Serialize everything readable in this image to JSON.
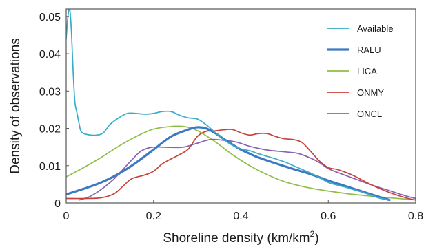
{
  "chart_data": {
    "type": "line",
    "title": "",
    "xlabel": "Shoreline density (km/km",
    "xlabel_sup": "2",
    "xlabel_end": ")",
    "ylabel": "Density of observations",
    "xlim": [
      0,
      0.8
    ],
    "ylim": [
      0,
      0.052
    ],
    "xticks": [
      0,
      0.2,
      0.4,
      0.6,
      0.8
    ],
    "xtick_labels": [
      "0",
      "0.2",
      "0.4",
      "0.6",
      "0.8"
    ],
    "yticks": [
      0,
      0.01,
      0.02,
      0.03,
      0.04,
      0.05
    ],
    "ytick_labels": [
      "0",
      "0.01",
      "0.02",
      "0.03",
      "0.04",
      "0.05"
    ],
    "grid": false,
    "legend": "top-right",
    "series": [
      {
        "name": "Available",
        "color": "#3aacc9",
        "width": 1.7,
        "x": [
          0,
          0.004,
          0.008,
          0.012,
          0.016,
          0.02,
          0.025,
          0.03,
          0.035,
          0.05,
          0.07,
          0.085,
          0.1,
          0.12,
          0.14,
          0.16,
          0.18,
          0.2,
          0.22,
          0.24,
          0.26,
          0.28,
          0.3,
          0.32,
          0.34,
          0.36,
          0.38,
          0.4,
          0.42,
          0.44,
          0.46,
          0.48,
          0.5,
          0.52,
          0.54,
          0.56,
          0.58,
          0.6,
          0.62,
          0.64,
          0.66,
          0.68,
          0.7,
          0.72,
          0.74
        ],
        "y": [
          0.044,
          0.05,
          0.052,
          0.046,
          0.035,
          0.027,
          0.024,
          0.021,
          0.019,
          0.0183,
          0.0182,
          0.0188,
          0.021,
          0.0228,
          0.024,
          0.024,
          0.0238,
          0.024,
          0.0245,
          0.0245,
          0.0235,
          0.0228,
          0.0225,
          0.021,
          0.019,
          0.017,
          0.0155,
          0.0145,
          0.014,
          0.0132,
          0.0125,
          0.0118,
          0.011,
          0.01,
          0.009,
          0.008,
          0.0068,
          0.0055,
          0.0048,
          0.0042,
          0.0035,
          0.0028,
          0.002,
          0.0012,
          0.0008
        ]
      },
      {
        "name": "RALU",
        "color": "#3d78c2",
        "width": 3.2,
        "x": [
          0,
          0.04,
          0.08,
          0.12,
          0.16,
          0.2,
          0.24,
          0.28,
          0.3,
          0.32,
          0.34,
          0.36,
          0.38,
          0.4,
          0.42,
          0.44,
          0.48,
          0.52,
          0.56,
          0.6,
          0.64,
          0.68,
          0.72,
          0.74
        ],
        "y": [
          0.0023,
          0.0038,
          0.0055,
          0.0078,
          0.0108,
          0.0143,
          0.0178,
          0.0197,
          0.0203,
          0.02,
          0.0188,
          0.0172,
          0.0157,
          0.0143,
          0.0132,
          0.0122,
          0.0106,
          0.0091,
          0.0077,
          0.006,
          0.0045,
          0.003,
          0.0015,
          0.0008
        ]
      },
      {
        "name": "LICA",
        "color": "#8ebf45",
        "width": 1.7,
        "x": [
          0,
          0.04,
          0.08,
          0.12,
          0.16,
          0.2,
          0.24,
          0.27,
          0.3,
          0.34,
          0.38,
          0.42,
          0.46,
          0.5,
          0.55,
          0.6,
          0.65,
          0.7,
          0.75,
          0.8
        ],
        "y": [
          0.007,
          0.0095,
          0.0122,
          0.0152,
          0.0178,
          0.0198,
          0.0205,
          0.0205,
          0.0194,
          0.0165,
          0.013,
          0.01,
          0.0076,
          0.0057,
          0.0042,
          0.0032,
          0.0024,
          0.0018,
          0.0013,
          0.0008
        ]
      },
      {
        "name": "ONMY",
        "color": "#c8413a",
        "width": 1.7,
        "x": [
          0,
          0.04,
          0.08,
          0.11,
          0.13,
          0.15,
          0.18,
          0.2,
          0.22,
          0.24,
          0.26,
          0.28,
          0.3,
          0.32,
          0.34,
          0.36,
          0.38,
          0.4,
          0.42,
          0.44,
          0.46,
          0.48,
          0.5,
          0.52,
          0.54,
          0.56,
          0.58,
          0.6,
          0.62,
          0.64,
          0.66,
          0.7,
          0.74,
          0.78,
          0.8
        ],
        "y": [
          0.0012,
          0.0012,
          0.0014,
          0.0025,
          0.0045,
          0.0065,
          0.0075,
          0.0085,
          0.0105,
          0.0118,
          0.013,
          0.0145,
          0.0178,
          0.0192,
          0.0193,
          0.0196,
          0.0197,
          0.0188,
          0.0182,
          0.0186,
          0.0186,
          0.0178,
          0.0172,
          0.017,
          0.0162,
          0.0138,
          0.0112,
          0.0095,
          0.009,
          0.0082,
          0.0072,
          0.0048,
          0.0028,
          0.0013,
          0.0008
        ]
      },
      {
        "name": "ONCL",
        "color": "#8863b0",
        "width": 1.7,
        "x": [
          0.03,
          0.05,
          0.07,
          0.09,
          0.11,
          0.13,
          0.15,
          0.17,
          0.19,
          0.21,
          0.24,
          0.27,
          0.3,
          0.33,
          0.36,
          0.39,
          0.42,
          0.46,
          0.5,
          0.53,
          0.56,
          0.58,
          0.6,
          0.63,
          0.66,
          0.7,
          0.74,
          0.78,
          0.8
        ],
        "y": [
          0.0008,
          0.0015,
          0.0028,
          0.0045,
          0.0065,
          0.009,
          0.0115,
          0.0138,
          0.0148,
          0.015,
          0.0149,
          0.015,
          0.016,
          0.017,
          0.0168,
          0.0163,
          0.0152,
          0.0142,
          0.0137,
          0.0133,
          0.012,
          0.0108,
          0.0092,
          0.0078,
          0.0065,
          0.0048,
          0.0033,
          0.0018,
          0.0012
        ]
      }
    ]
  }
}
